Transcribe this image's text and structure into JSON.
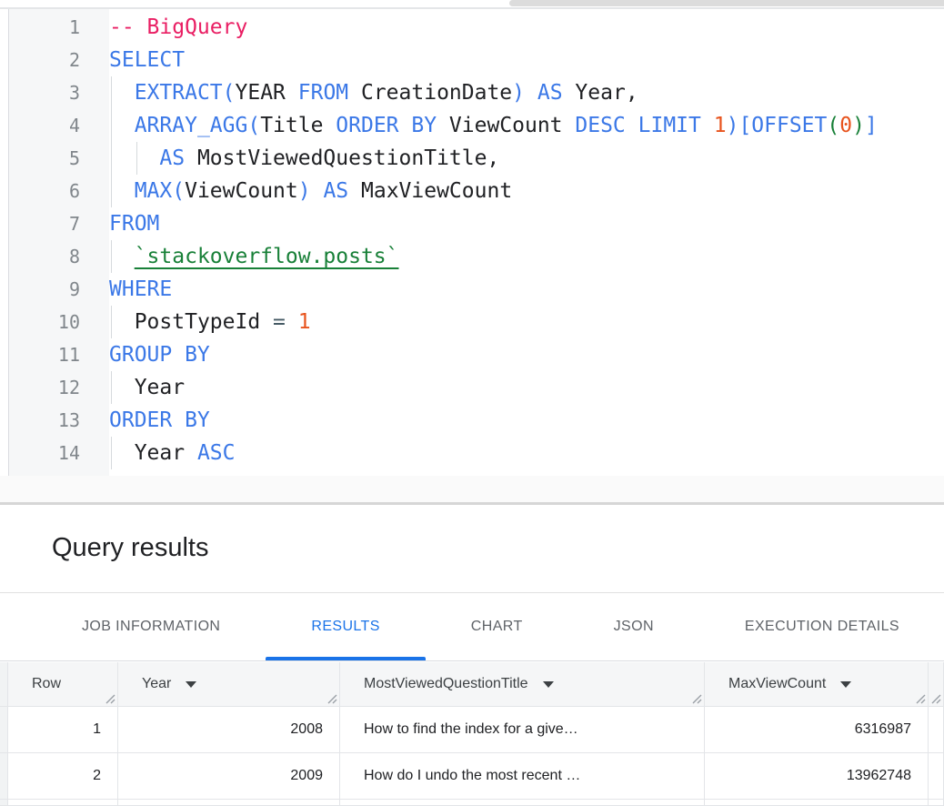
{
  "colors": {
    "accent": "#1a73e8",
    "keyword": "#3b78e7",
    "comment": "#e91e63",
    "number": "#e8541e",
    "string": "#188038",
    "bracket_l2": "#188038",
    "plain": "#202124",
    "operator": "#455a64",
    "line_number": "#80868b",
    "tab_inactive": "#5f6368",
    "header_text": "#3c4043"
  },
  "editor": {
    "lines": [
      {
        "n": 1,
        "indent": 0,
        "tokens": [
          [
            "cm",
            "-- BigQuery"
          ]
        ]
      },
      {
        "n": 2,
        "indent": 0,
        "tokens": [
          [
            "kw",
            "SELECT"
          ]
        ]
      },
      {
        "n": 3,
        "indent": 2,
        "tokens": [
          [
            "kw",
            "EXTRACT"
          ],
          [
            "b1",
            "("
          ],
          [
            "pl",
            "YEAR "
          ],
          [
            "kw",
            "FROM"
          ],
          [
            "pl",
            " CreationDate"
          ],
          [
            "b1",
            ")"
          ],
          [
            "pl",
            " "
          ],
          [
            "kw",
            "AS"
          ],
          [
            "pl",
            " Year,"
          ]
        ]
      },
      {
        "n": 4,
        "indent": 2,
        "tokens": [
          [
            "kw",
            "ARRAY_AGG"
          ],
          [
            "b1",
            "("
          ],
          [
            "pl",
            "Title "
          ],
          [
            "kw",
            "ORDER BY"
          ],
          [
            "pl",
            " ViewCount "
          ],
          [
            "kw",
            "DESC LIMIT"
          ],
          [
            "pl",
            " "
          ],
          [
            "nu",
            "1"
          ],
          [
            "b1",
            ")["
          ],
          [
            "kw",
            "OFFSET"
          ],
          [
            "b2",
            "("
          ],
          [
            "nu",
            "0"
          ],
          [
            "b2",
            ")"
          ],
          [
            "b1",
            "]"
          ]
        ]
      },
      {
        "n": 5,
        "indent": 4,
        "tokens": [
          [
            "kw",
            "AS"
          ],
          [
            "pl",
            " MostViewedQuestionTitle,"
          ]
        ]
      },
      {
        "n": 6,
        "indent": 2,
        "tokens": [
          [
            "kw",
            "MAX"
          ],
          [
            "b1",
            "("
          ],
          [
            "pl",
            "ViewCount"
          ],
          [
            "b1",
            ")"
          ],
          [
            "pl",
            " "
          ],
          [
            "kw",
            "AS"
          ],
          [
            "pl",
            " MaxViewCount"
          ]
        ]
      },
      {
        "n": 7,
        "indent": 0,
        "tokens": [
          [
            "kw",
            "FROM"
          ]
        ]
      },
      {
        "n": 8,
        "indent": 2,
        "tokens": [
          [
            "st",
            "`stackoverflow.posts`"
          ]
        ]
      },
      {
        "n": 9,
        "indent": 0,
        "tokens": [
          [
            "kw",
            "WHERE"
          ]
        ]
      },
      {
        "n": 10,
        "indent": 2,
        "tokens": [
          [
            "pl",
            "PostTypeId "
          ],
          [
            "op",
            "="
          ],
          [
            "pl",
            " "
          ],
          [
            "nu",
            "1"
          ]
        ]
      },
      {
        "n": 11,
        "indent": 0,
        "tokens": [
          [
            "kw",
            "GROUP BY"
          ]
        ]
      },
      {
        "n": 12,
        "indent": 2,
        "tokens": [
          [
            "pl",
            "Year"
          ]
        ]
      },
      {
        "n": 13,
        "indent": 0,
        "tokens": [
          [
            "kw",
            "ORDER BY"
          ]
        ]
      },
      {
        "n": 14,
        "indent": 2,
        "tokens": [
          [
            "pl",
            "Year "
          ],
          [
            "kw",
            "ASC"
          ]
        ]
      }
    ]
  },
  "results": {
    "title": "Query results"
  },
  "tabs": {
    "items": [
      "JOB INFORMATION",
      "RESULTS",
      "CHART",
      "JSON",
      "EXECUTION DETAILS"
    ],
    "active": "RESULTS"
  },
  "table": {
    "columns": [
      {
        "label": "Row",
        "sortable": false,
        "align": "right"
      },
      {
        "label": "Year",
        "sortable": true,
        "align": "right"
      },
      {
        "label": "MostViewedQuestionTitle",
        "sortable": true,
        "align": "left"
      },
      {
        "label": "MaxViewCount",
        "sortable": true,
        "align": "right"
      }
    ],
    "rows": [
      [
        "1",
        "2008",
        "How to find the index for a give…",
        "6316987"
      ],
      [
        "2",
        "2009",
        "How do I undo the most recent …",
        "13962748"
      ]
    ]
  }
}
